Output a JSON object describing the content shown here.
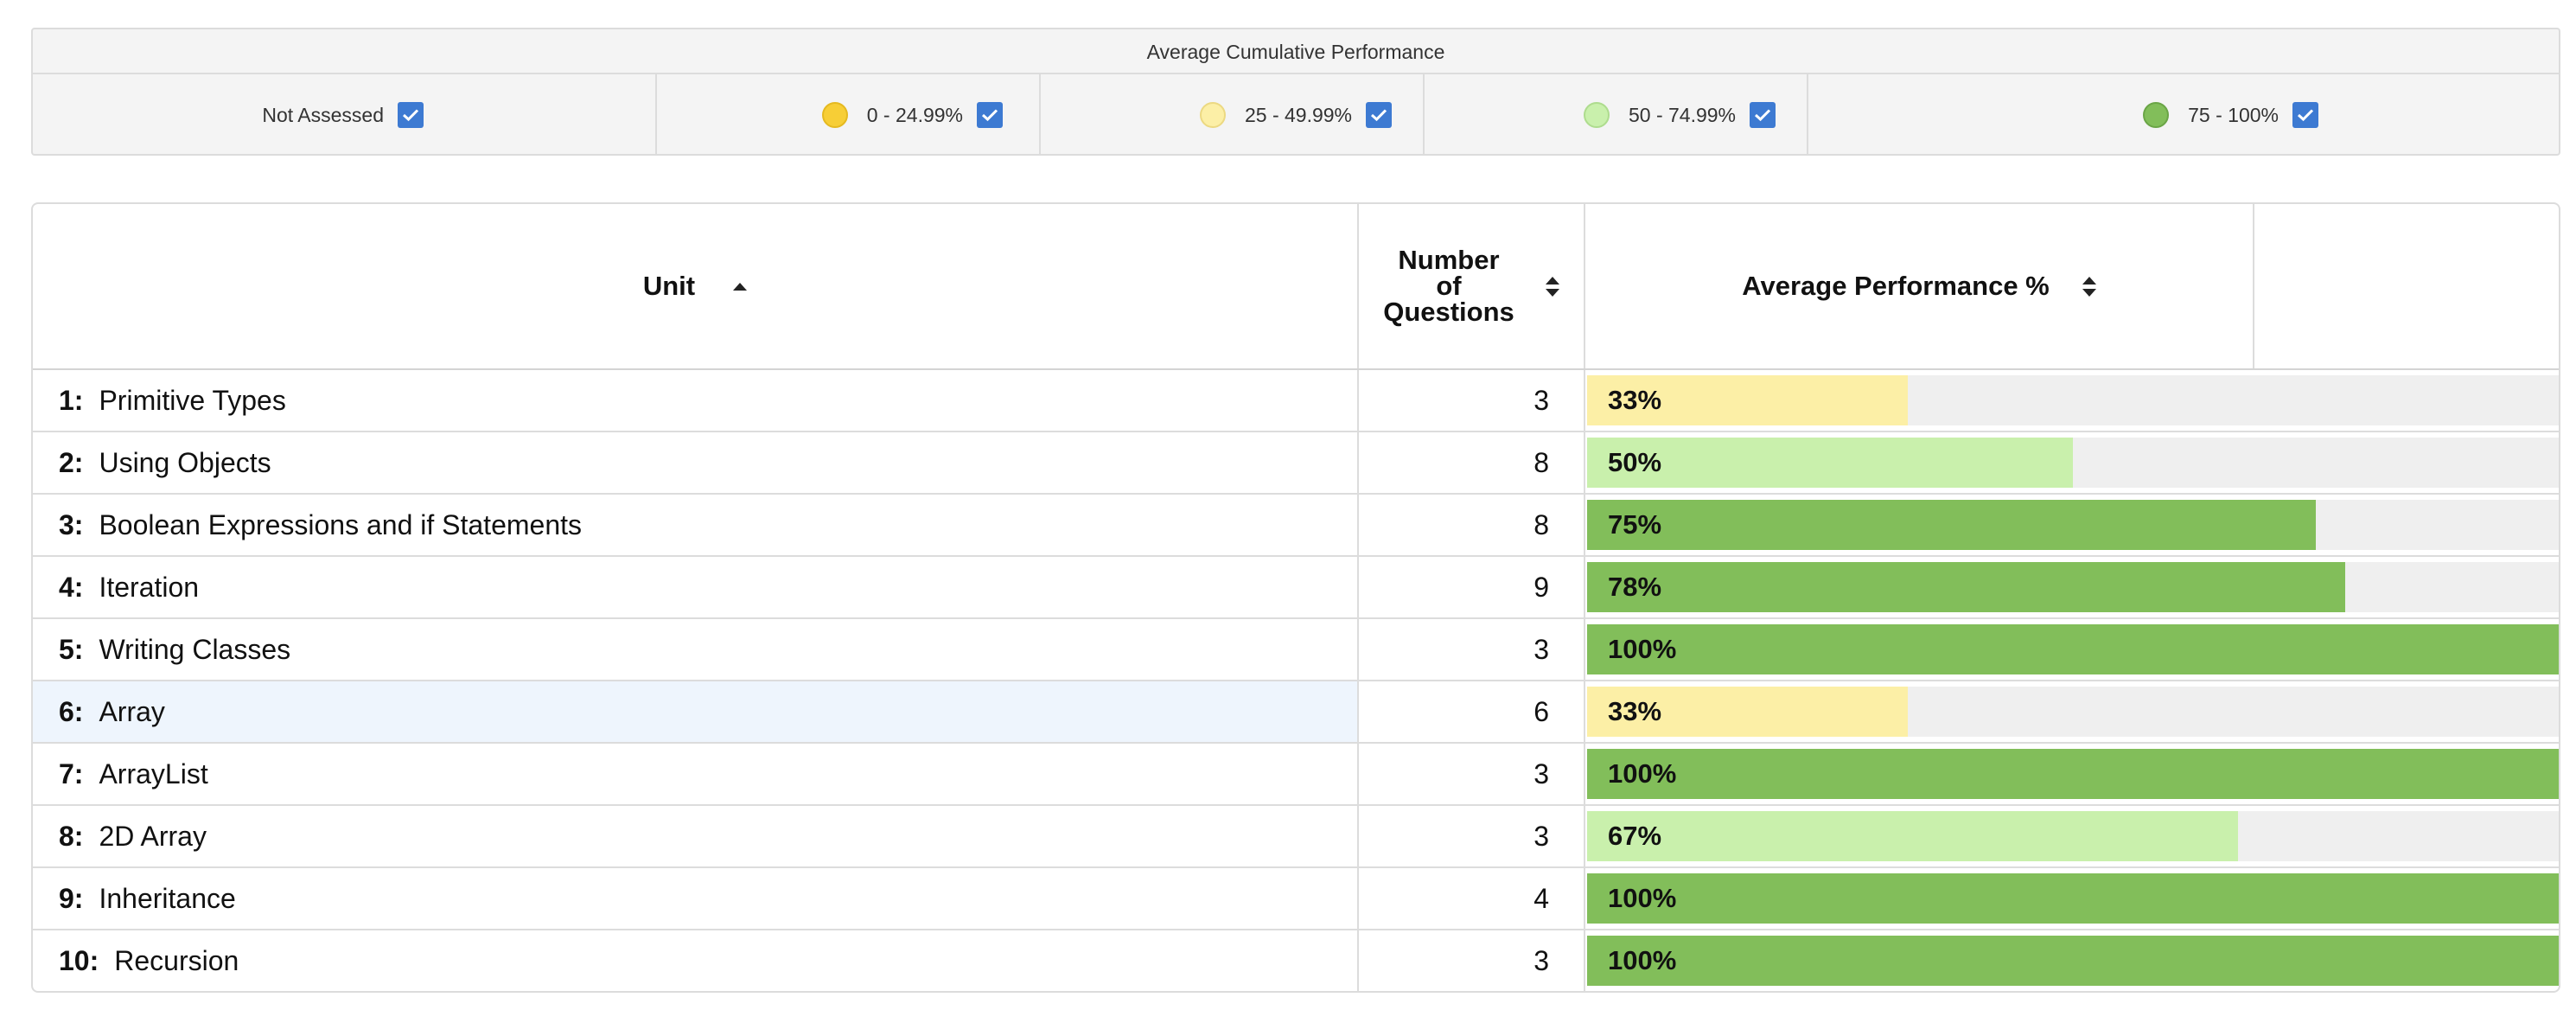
{
  "legend": {
    "title": "Average Cumulative Performance",
    "items": [
      {
        "label": "Not Assessed",
        "dot": null,
        "checked": true
      },
      {
        "label": "0 - 24.99%",
        "dot": "#f7ce36",
        "checked": true
      },
      {
        "label": "25 - 49.99%",
        "dot": "#fcefa6",
        "checked": true
      },
      {
        "label": "50 - 74.99%",
        "dot": "#c9f0ac",
        "checked": true
      },
      {
        "label": "75 - 100%",
        "dot": "#82be5a",
        "checked": true
      }
    ]
  },
  "table": {
    "columns": {
      "unit": "Unit",
      "questions": [
        "Number",
        "of",
        "Questions"
      ],
      "performance": "Average Performance %"
    },
    "rows": [
      {
        "num": "1:",
        "name": "Primitive Types",
        "questions": "3",
        "percent": "33%",
        "value": 0.33,
        "color": "#fcefa6"
      },
      {
        "num": "2:",
        "name": "Using Objects",
        "questions": "8",
        "percent": "50%",
        "value": 0.5,
        "color": "#c9f0ac"
      },
      {
        "num": "3:",
        "name": "Boolean Expressions and if Statements",
        "questions": "8",
        "percent": "75%",
        "value": 0.75,
        "color": "#82be5a"
      },
      {
        "num": "4:",
        "name": "Iteration",
        "questions": "9",
        "percent": "78%",
        "value": 0.78,
        "color": "#82be5a"
      },
      {
        "num": "5:",
        "name": "Writing Classes",
        "questions": "3",
        "percent": "100%",
        "value": 1.0,
        "color": "#82be5a"
      },
      {
        "num": "6:",
        "name": "Array",
        "questions": "6",
        "percent": "33%",
        "value": 0.33,
        "color": "#fcefa6",
        "highlight": true
      },
      {
        "num": "7:",
        "name": "ArrayList",
        "questions": "3",
        "percent": "100%",
        "value": 1.0,
        "color": "#82be5a"
      },
      {
        "num": "8:",
        "name": "2D Array",
        "questions": "3",
        "percent": "67%",
        "value": 0.67,
        "color": "#c9f0ac"
      },
      {
        "num": "9:",
        "name": "Inheritance",
        "questions": "4",
        "percent": "100%",
        "value": 1.0,
        "color": "#82be5a"
      },
      {
        "num": "10:",
        "name": "Recursion",
        "questions": "3",
        "percent": "100%",
        "value": 1.0,
        "color": "#82be5a"
      }
    ]
  }
}
